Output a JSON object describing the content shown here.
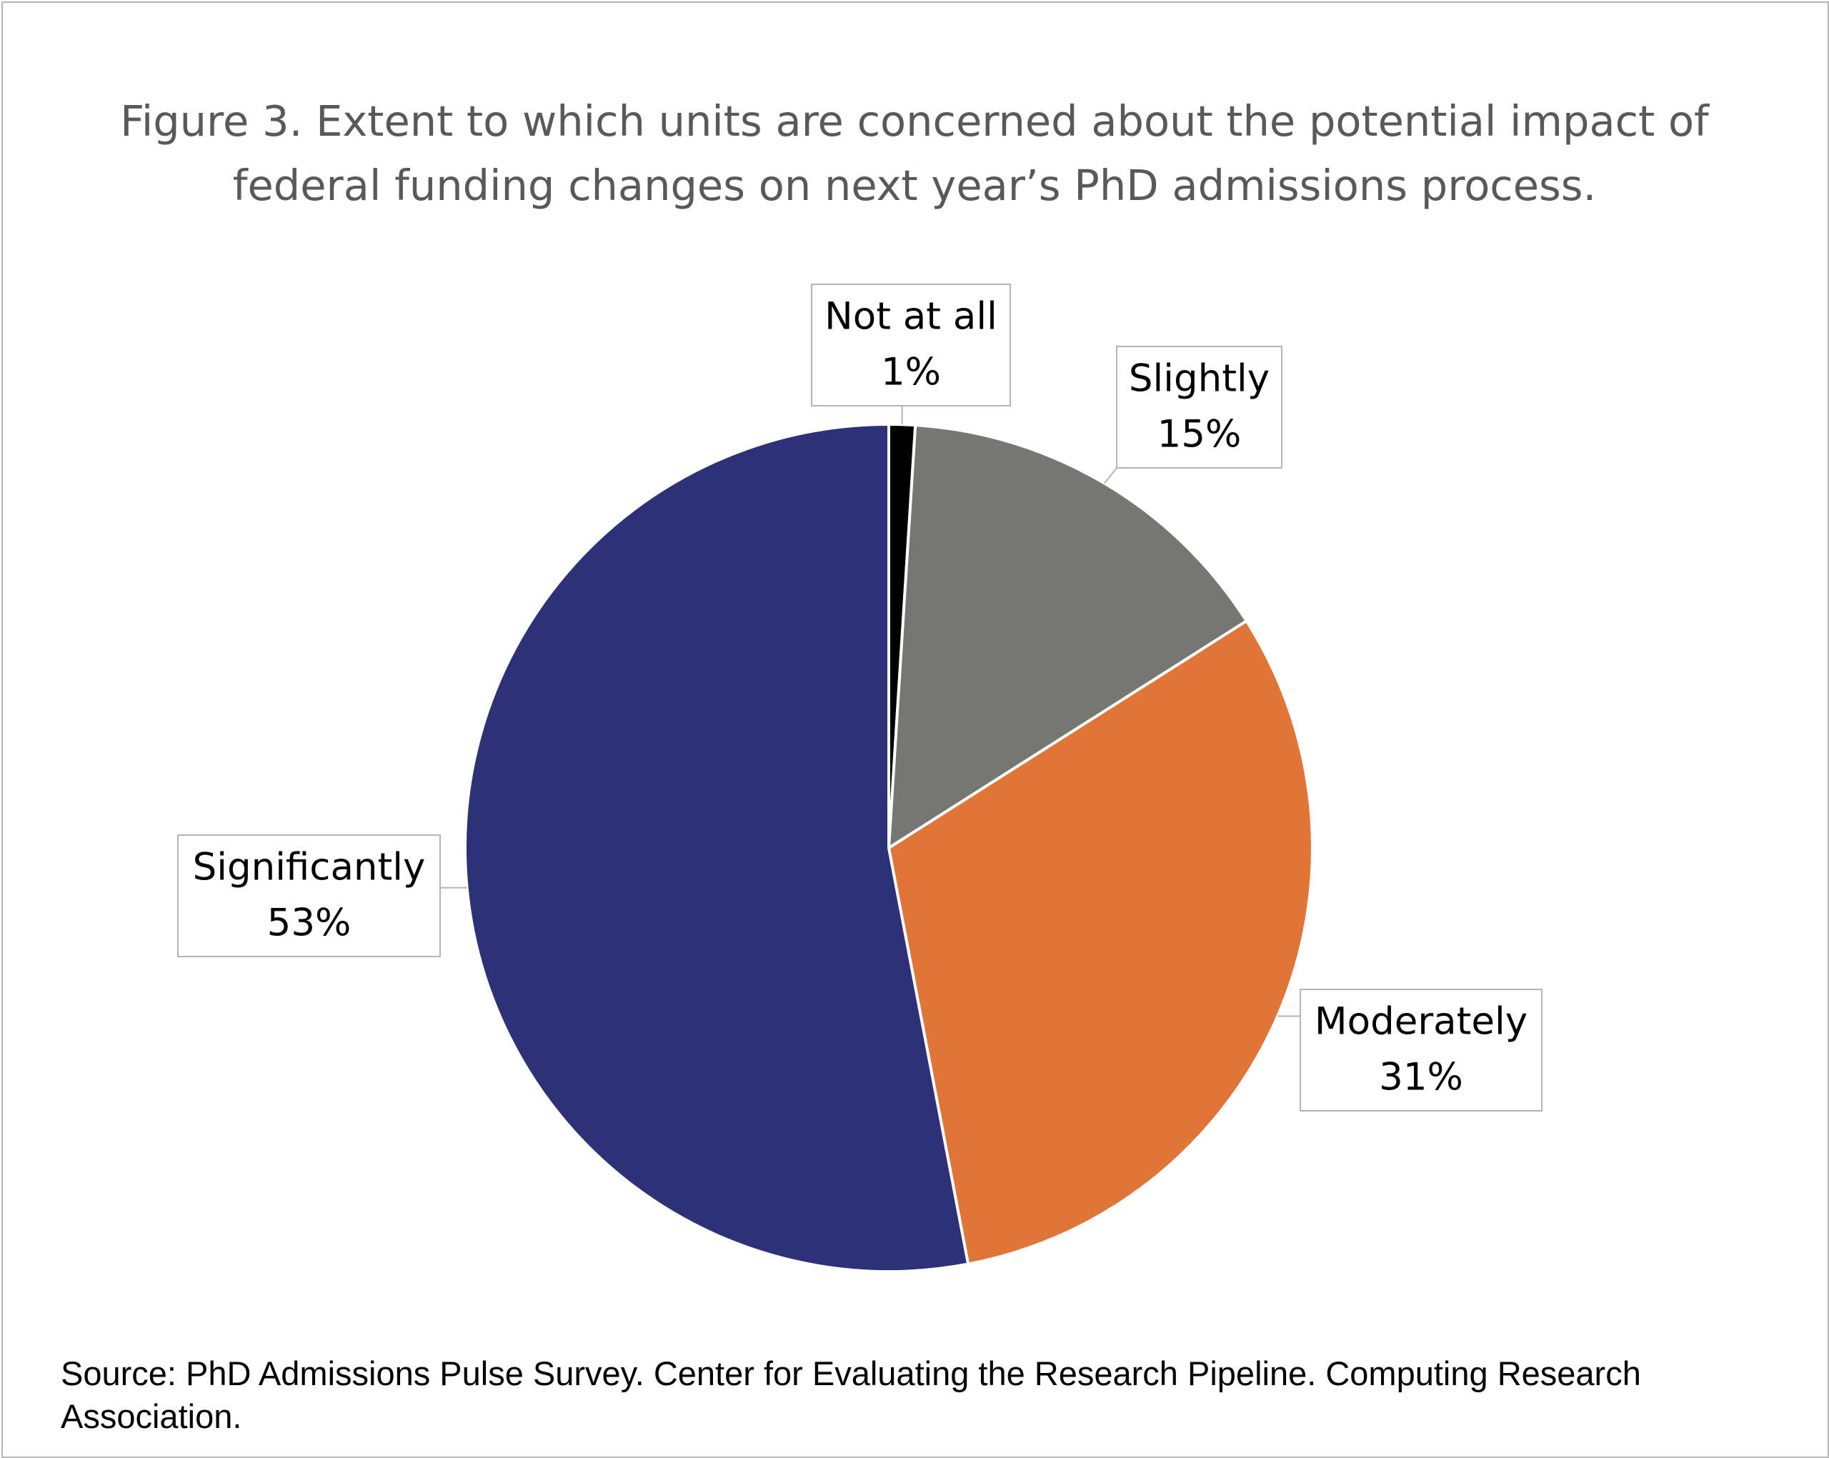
{
  "chart_data": {
    "type": "pie",
    "title": "Figure 3. Extent to which units are concerned about the potential impact of federal funding changes on next year’s PhD admissions process.",
    "categories": [
      "Not at all",
      "Slightly",
      "Moderately",
      "Significantly"
    ],
    "values": [
      1,
      15,
      31,
      53
    ],
    "value_labels": [
      "1%",
      "15%",
      "31%",
      "53%"
    ],
    "colors": [
      "#000000",
      "#767674",
      "#E07538",
      "#2D3178"
    ],
    "source": "Source: PhD Admissions Pulse Survey. Center for Evaluating the Research Pipeline. Computing Research Association."
  }
}
